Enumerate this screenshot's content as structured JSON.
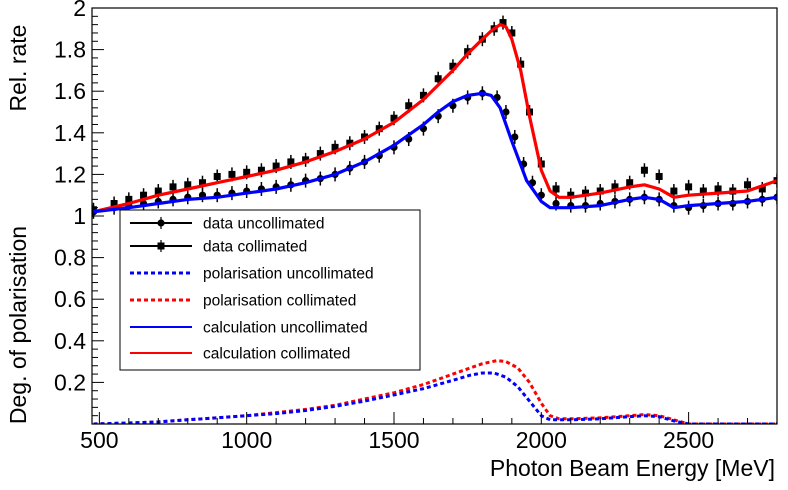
{
  "chart_data": {
    "type": "line",
    "xlabel": "Photon Beam Energy [MeV]",
    "ylabel_top": "Rel.  rate",
    "ylabel_bottom": "Deg. of polarisation",
    "xlim": [
      475,
      2800
    ],
    "ylim": [
      0,
      2.0
    ],
    "x_ticks": [
      500,
      1000,
      1500,
      2000,
      2500
    ],
    "y_ticks": [
      {
        "v": 0.2,
        "label": "0.2"
      },
      {
        "v": 0.4,
        "label": "0.4"
      },
      {
        "v": 0.6,
        "label": "0.6"
      },
      {
        "v": 0.8,
        "label": "0.8"
      },
      {
        "v": 1.0,
        "label": "1"
      },
      {
        "v": 1.2,
        "label": "1.2"
      },
      {
        "v": 1.4,
        "label": "1.4"
      },
      {
        "v": 1.6,
        "label": "1.6"
      },
      {
        "v": 1.8,
        "label": "1.8"
      },
      {
        "v": 2.0,
        "label": "2"
      }
    ],
    "legend": {
      "position": "middle-left",
      "entries": [
        {
          "label": "data uncollimated",
          "color": "#000000",
          "style": "solid",
          "marker": "circle"
        },
        {
          "label": "data collimated",
          "color": "#000000",
          "style": "solid",
          "marker": "square"
        },
        {
          "label": "polarisation uncollimated",
          "color": "#0000ff",
          "style": "dotted",
          "marker": "none"
        },
        {
          "label": "polarisation collimated",
          "color": "#ff0000",
          "style": "dotted",
          "marker": "none"
        },
        {
          "label": "calculation uncollimated",
          "color": "#0000ff",
          "style": "solid",
          "marker": "none"
        },
        {
          "label": "calculation collimated",
          "color": "#ff0000",
          "style": "solid",
          "marker": "none"
        }
      ]
    },
    "series": [
      {
        "name": "calculation collimated",
        "color": "#ff0000",
        "style": "solid",
        "x": [
          480,
          600,
          700,
          800,
          900,
          1000,
          1100,
          1200,
          1300,
          1400,
          1500,
          1600,
          1650,
          1700,
          1750,
          1800,
          1830,
          1860,
          1880,
          1900,
          1930,
          1960,
          2000,
          2030,
          2060,
          2100,
          2200,
          2300,
          2350,
          2400,
          2450,
          2500,
          2600,
          2700,
          2800
        ],
        "values": [
          1.02,
          1.06,
          1.1,
          1.13,
          1.16,
          1.19,
          1.22,
          1.26,
          1.31,
          1.37,
          1.45,
          1.56,
          1.63,
          1.7,
          1.78,
          1.85,
          1.89,
          1.92,
          1.91,
          1.85,
          1.7,
          1.48,
          1.22,
          1.12,
          1.09,
          1.09,
          1.11,
          1.14,
          1.15,
          1.13,
          1.09,
          1.1,
          1.11,
          1.12,
          1.17
        ]
      },
      {
        "name": "calculation uncollimated",
        "color": "#0000ff",
        "style": "solid",
        "x": [
          480,
          600,
          700,
          800,
          900,
          1000,
          1100,
          1200,
          1300,
          1400,
          1500,
          1600,
          1650,
          1700,
          1750,
          1800,
          1830,
          1860,
          1900,
          1950,
          2000,
          2030,
          2060,
          2100,
          2200,
          2300,
          2350,
          2400,
          2450,
          2500,
          2600,
          2700,
          2800
        ],
        "values": [
          1.02,
          1.04,
          1.06,
          1.08,
          1.09,
          1.11,
          1.13,
          1.16,
          1.2,
          1.26,
          1.34,
          1.44,
          1.5,
          1.55,
          1.58,
          1.59,
          1.58,
          1.52,
          1.36,
          1.17,
          1.07,
          1.04,
          1.04,
          1.04,
          1.05,
          1.08,
          1.09,
          1.08,
          1.04,
          1.05,
          1.06,
          1.07,
          1.09
        ]
      },
      {
        "name": "data collimated",
        "color": "#000000",
        "style": "markers",
        "marker": "square",
        "x": [
          480,
          550,
          600,
          650,
          700,
          750,
          800,
          850,
          900,
          950,
          1000,
          1050,
          1100,
          1150,
          1200,
          1250,
          1300,
          1350,
          1400,
          1450,
          1500,
          1550,
          1600,
          1650,
          1700,
          1750,
          1800,
          1840,
          1870,
          1900,
          1930,
          1960,
          2000,
          2050,
          2100,
          2150,
          2200,
          2250,
          2300,
          2350,
          2400,
          2450,
          2500,
          2550,
          2600,
          2650,
          2700,
          2750,
          2800
        ],
        "values": [
          1.03,
          1.06,
          1.08,
          1.1,
          1.12,
          1.14,
          1.15,
          1.16,
          1.19,
          1.2,
          1.21,
          1.22,
          1.24,
          1.26,
          1.27,
          1.3,
          1.33,
          1.35,
          1.38,
          1.42,
          1.47,
          1.53,
          1.58,
          1.66,
          1.72,
          1.79,
          1.85,
          1.9,
          1.93,
          1.88,
          1.73,
          1.5,
          1.25,
          1.13,
          1.1,
          1.11,
          1.12,
          1.14,
          1.16,
          1.22,
          1.19,
          1.12,
          1.14,
          1.12,
          1.13,
          1.12,
          1.15,
          1.13,
          1.17
        ]
      },
      {
        "name": "data uncollimated",
        "color": "#000000",
        "style": "markers",
        "marker": "circle",
        "x": [
          480,
          550,
          600,
          650,
          700,
          750,
          800,
          850,
          900,
          950,
          1000,
          1050,
          1100,
          1150,
          1200,
          1250,
          1300,
          1350,
          1400,
          1450,
          1500,
          1550,
          1600,
          1650,
          1700,
          1750,
          1800,
          1850,
          1880,
          1910,
          1940,
          1970,
          2000,
          2050,
          2100,
          2150,
          2200,
          2250,
          2300,
          2350,
          2400,
          2450,
          2500,
          2550,
          2600,
          2650,
          2700,
          2750,
          2800
        ],
        "values": [
          1.02,
          1.04,
          1.05,
          1.06,
          1.07,
          1.08,
          1.09,
          1.1,
          1.1,
          1.11,
          1.12,
          1.13,
          1.14,
          1.15,
          1.17,
          1.18,
          1.2,
          1.23,
          1.26,
          1.29,
          1.33,
          1.37,
          1.42,
          1.48,
          1.53,
          1.57,
          1.59,
          1.57,
          1.5,
          1.38,
          1.25,
          1.16,
          1.1,
          1.06,
          1.05,
          1.05,
          1.06,
          1.07,
          1.08,
          1.09,
          1.08,
          1.05,
          1.04,
          1.05,
          1.06,
          1.06,
          1.07,
          1.08,
          1.09
        ]
      },
      {
        "name": "polarisation collimated",
        "color": "#ff0000",
        "style": "dotted",
        "x": [
          480,
          600,
          700,
          800,
          900,
          1000,
          1100,
          1200,
          1300,
          1400,
          1500,
          1600,
          1700,
          1760,
          1800,
          1850,
          1880,
          1920,
          1960,
          2000,
          2030,
          2060,
          2100,
          2200,
          2300,
          2350,
          2400,
          2450,
          2500,
          2600,
          2800
        ],
        "values": [
          0.0,
          0.005,
          0.01,
          0.02,
          0.03,
          0.04,
          0.055,
          0.07,
          0.09,
          0.12,
          0.15,
          0.19,
          0.24,
          0.27,
          0.29,
          0.305,
          0.3,
          0.27,
          0.2,
          0.1,
          0.04,
          0.025,
          0.025,
          0.03,
          0.04,
          0.045,
          0.04,
          0.02,
          0.0,
          0.0,
          0.0
        ]
      },
      {
        "name": "polarisation uncollimated",
        "color": "#0000ff",
        "style": "dotted",
        "x": [
          480,
          600,
          700,
          800,
          900,
          1000,
          1100,
          1200,
          1300,
          1400,
          1500,
          1600,
          1700,
          1760,
          1800,
          1840,
          1880,
          1920,
          1960,
          2000,
          2030,
          2060,
          2100,
          2200,
          2300,
          2350,
          2400,
          2450,
          2500,
          2600,
          2800
        ],
        "values": [
          0.0,
          0.005,
          0.01,
          0.02,
          0.03,
          0.04,
          0.05,
          0.065,
          0.085,
          0.11,
          0.14,
          0.17,
          0.21,
          0.235,
          0.245,
          0.245,
          0.225,
          0.18,
          0.11,
          0.04,
          0.02,
          0.02,
          0.02,
          0.025,
          0.035,
          0.04,
          0.035,
          0.015,
          0.0,
          0.0,
          0.0
        ]
      }
    ]
  }
}
